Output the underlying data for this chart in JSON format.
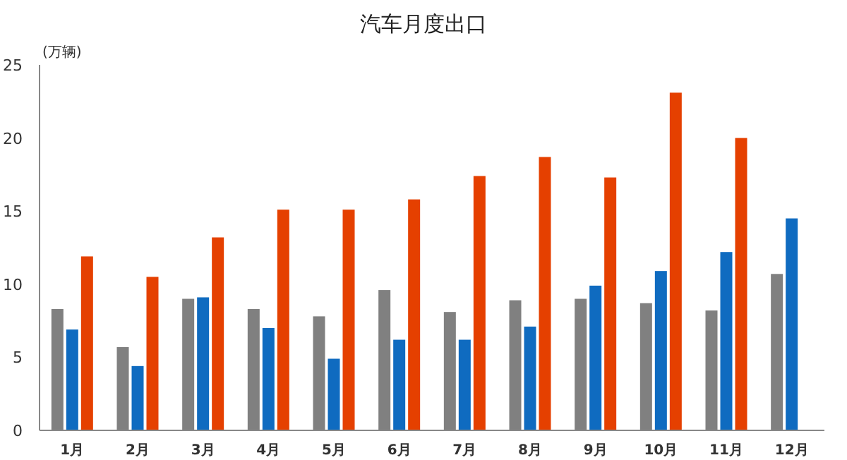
{
  "chart_data": {
    "type": "bar",
    "title": "汽车月度出口",
    "ylabel": "(万辆)",
    "categories": [
      "1月",
      "2月",
      "3月",
      "4月",
      "5月",
      "6月",
      "7月",
      "8月",
      "9月",
      "10月",
      "11月",
      "12月"
    ],
    "series": [
      {
        "color": "#808080",
        "values": [
          8.3,
          5.7,
          9.0,
          8.3,
          7.8,
          9.6,
          8.1,
          8.9,
          9.0,
          8.7,
          8.2,
          10.7
        ]
      },
      {
        "color": "#0f6bc0",
        "values": [
          6.9,
          4.4,
          9.1,
          7.0,
          4.9,
          6.2,
          6.2,
          7.1,
          9.9,
          10.9,
          12.2,
          14.5
        ]
      },
      {
        "color": "#e54000",
        "values": [
          11.9,
          10.5,
          13.2,
          15.1,
          15.1,
          15.8,
          17.4,
          18.7,
          17.3,
          23.1,
          20.0,
          null
        ]
      }
    ],
    "ylim": [
      0,
      25
    ],
    "yticks": [
      0,
      5,
      10,
      15,
      20,
      25
    ],
    "grid": false
  }
}
